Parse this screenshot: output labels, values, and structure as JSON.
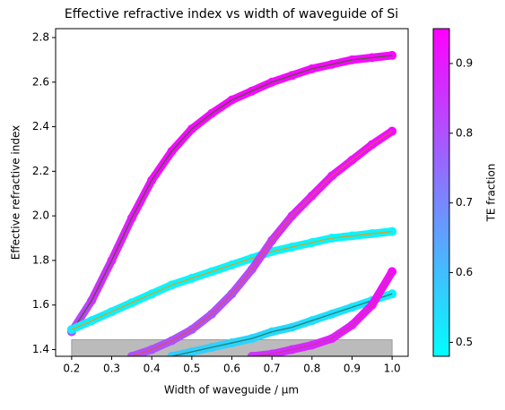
{
  "chart_data": {
    "type": "scatter",
    "title": "Effective refractive index vs width of waveguide of Si",
    "x_label": "Width of waveguide / µm",
    "y_label": "Effective refractive index",
    "colorbar_label": "TE fraction",
    "colormap": "cool",
    "clim": [
      0.48,
      0.95
    ],
    "cticks": [
      0.5,
      0.6,
      0.7,
      0.8,
      0.9
    ],
    "xlim": [
      0.16,
      1.04
    ],
    "ylim": [
      1.37,
      2.84
    ],
    "xticks": [
      0.2,
      0.3,
      0.4,
      0.5,
      0.6,
      0.7,
      0.8,
      0.9,
      {
        "value": 1,
        "label": "1.0"
      }
    ],
    "yticks": [
      1.4,
      1.6,
      1.8,
      {
        "value": 2,
        "label": "2.0"
      },
      2.2,
      2.4,
      2.6,
      2.8
    ],
    "band": {
      "x": [
        0.2,
        1
      ],
      "y": [
        1.36,
        1.444
      ],
      "color": "#bbbbbb"
    },
    "x": [
      0.2,
      0.25,
      0.3,
      0.35,
      0.4,
      0.45,
      0.5,
      0.55,
      0.6,
      0.65,
      0.7,
      0.75,
      0.8,
      0.85,
      0.9,
      0.95,
      1
    ],
    "series": [
      {
        "line_color": "#555533",
        "values": [
          1.48,
          1.62,
          1.8,
          1.99,
          2.16,
          2.29,
          2.39,
          2.46,
          2.52,
          2.56,
          2.6,
          2.63,
          2.66,
          2.68,
          2.7,
          2.71,
          2.72
        ],
        "te_fraction": [
          0.8,
          0.85,
          0.88,
          0.9,
          0.92,
          0.93,
          0.93,
          0.93,
          0.93,
          0.93,
          0.93,
          0.93,
          0.93,
          0.93,
          0.93,
          0.93,
          0.93
        ]
      },
      {
        "line_color": "#d9a020",
        "values": [
          1.49,
          1.53,
          1.57,
          1.61,
          1.65,
          1.69,
          1.72,
          1.75,
          1.78,
          1.81,
          1.84,
          1.86,
          1.88,
          1.9,
          1.91,
          1.92,
          1.93
        ],
        "te_fraction": [
          0.52,
          0.51,
          0.51,
          0.5,
          0.5,
          0.5,
          0.5,
          0.5,
          0.5,
          0.5,
          0.5,
          0.5,
          0.5,
          0.5,
          0.5,
          0.5,
          0.5
        ]
      },
      {
        "line_color": "#e05050",
        "values": [
          null,
          null,
          null,
          1.37,
          1.4,
          1.44,
          1.49,
          1.56,
          1.65,
          1.76,
          1.89,
          2.0,
          2.09,
          2.18,
          2.25,
          2.32,
          2.38
        ],
        "te_fraction": [
          null,
          null,
          null,
          0.8,
          0.8,
          0.8,
          0.8,
          0.8,
          0.8,
          0.82,
          0.85,
          0.88,
          0.9,
          0.91,
          0.92,
          0.92,
          0.93
        ]
      },
      {
        "line_color": "#208070",
        "values": [
          null,
          null,
          null,
          null,
          null,
          1.37,
          1.39,
          1.41,
          1.43,
          1.45,
          1.48,
          1.5,
          1.53,
          1.56,
          1.59,
          1.62,
          1.65
        ],
        "te_fraction": [
          null,
          null,
          null,
          null,
          null,
          0.58,
          0.57,
          0.57,
          0.56,
          0.56,
          0.55,
          0.55,
          0.54,
          0.54,
          0.53,
          0.52,
          0.51
        ]
      },
      {
        "line_color": "#cc3399",
        "values": [
          null,
          null,
          null,
          null,
          null,
          null,
          null,
          null,
          null,
          1.37,
          1.38,
          1.4,
          1.42,
          1.45,
          1.51,
          1.6,
          1.75
        ],
        "te_fraction": [
          null,
          null,
          null,
          null,
          null,
          null,
          null,
          null,
          null,
          0.85,
          0.86,
          0.87,
          0.88,
          0.89,
          0.9,
          0.92,
          0.93
        ]
      }
    ]
  }
}
